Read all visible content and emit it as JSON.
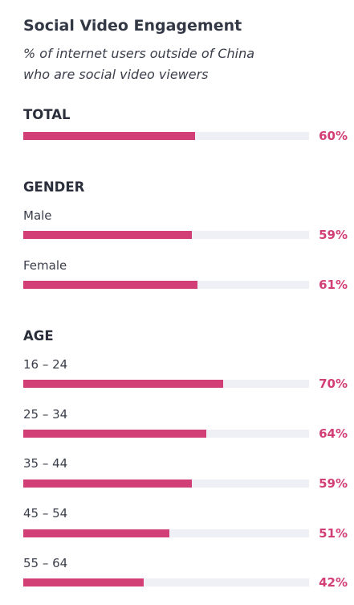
{
  "chart_data": {
    "type": "bar",
    "orientation": "horizontal",
    "title": "Social Video Engagement",
    "subtitle_lines": [
      "% of internet users outside of China",
      "who are social video viewers"
    ],
    "xlim": [
      0,
      100
    ],
    "unit": "%",
    "groups": [
      {
        "heading": "TOTAL",
        "rows": [
          {
            "label": "",
            "value": 60,
            "value_label": "60%"
          }
        ]
      },
      {
        "heading": "GENDER",
        "rows": [
          {
            "label": "Male",
            "value": 59,
            "value_label": "59%"
          },
          {
            "label": "Female",
            "value": 61,
            "value_label": "61%"
          }
        ]
      },
      {
        "heading": "AGE",
        "rows": [
          {
            "label": "16 – 24",
            "value": 70,
            "value_label": "70%"
          },
          {
            "label": "25 – 34",
            "value": 64,
            "value_label": "64%"
          },
          {
            "label": "35 – 44",
            "value": 59,
            "value_label": "59%"
          },
          {
            "label": "45 – 54",
            "value": 51,
            "value_label": "51%"
          },
          {
            "label": "55 – 64",
            "value": 42,
            "value_label": "42%"
          }
        ]
      }
    ],
    "colors": {
      "bar": "#d23f76",
      "track": "#eef0f6",
      "value_text": "#d23f76"
    }
  }
}
